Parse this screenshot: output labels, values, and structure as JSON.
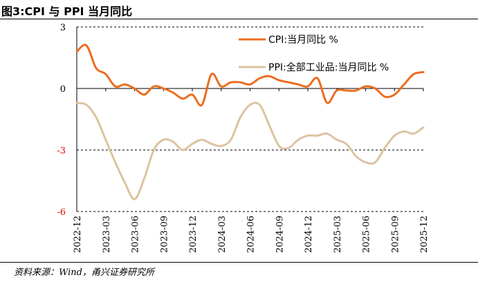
{
  "figure": {
    "title": "图3:CPI 与 PPI 当月同比",
    "source": "资料来源：Wind，甬兴证券研究所"
  },
  "chart_data": {
    "type": "line",
    "ylim": [
      -6,
      3
    ],
    "yticks": [
      {
        "value": 3,
        "label": "3"
      },
      {
        "value": 0,
        "label": "0"
      },
      {
        "value": -3,
        "label": "-3"
      },
      {
        "value": -6,
        "label": "-6"
      }
    ],
    "xlim": [
      "2022-12",
      "2025-12"
    ],
    "xticks": [
      "2022-12",
      "2023-03",
      "2023-06",
      "2023-09",
      "2023-12",
      "2024-03",
      "2024-06",
      "2024-09",
      "2024-12",
      "2025-03",
      "2025-06",
      "2025-09",
      "2025-12"
    ],
    "grid": "dashed horizontal at -3 and 3",
    "legend_position": "top-right",
    "colors": {
      "negative_tick": "#e00000",
      "positive_tick": "#000000"
    },
    "series": [
      {
        "name": "CPI:当月同比 %",
        "color": "#ec6d1f",
        "points": [
          [
            "2022-12",
            1.8
          ],
          [
            "2023-01",
            2.1
          ],
          [
            "2023-02",
            1.0
          ],
          [
            "2023-03",
            0.7
          ],
          [
            "2023-04",
            0.1
          ],
          [
            "2023-05",
            0.2
          ],
          [
            "2023-06",
            0.0
          ],
          [
            "2023-07",
            -0.3
          ],
          [
            "2023-08",
            0.1
          ],
          [
            "2023-09",
            0.0
          ],
          [
            "2023-10",
            -0.2
          ],
          [
            "2023-11",
            -0.5
          ],
          [
            "2023-12",
            -0.3
          ],
          [
            "2024-01",
            -0.8
          ],
          [
            "2024-02",
            0.7
          ],
          [
            "2024-03",
            0.1
          ],
          [
            "2024-04",
            0.3
          ],
          [
            "2024-05",
            0.3
          ],
          [
            "2024-06",
            0.2
          ],
          [
            "2024-07",
            0.5
          ],
          [
            "2024-08",
            0.6
          ],
          [
            "2024-09",
            0.4
          ],
          [
            "2024-10",
            0.3
          ],
          [
            "2024-11",
            0.2
          ],
          [
            "2024-12",
            0.1
          ],
          [
            "2025-01",
            0.5
          ],
          [
            "2025-02",
            -0.7
          ],
          [
            "2025-03",
            -0.1
          ],
          [
            "2025-04",
            -0.1
          ],
          [
            "2025-05",
            -0.1
          ],
          [
            "2025-06",
            0.1
          ],
          [
            "2025-07",
            0.0
          ],
          [
            "2025-08",
            -0.4
          ],
          [
            "2025-09",
            -0.3
          ],
          [
            "2025-10",
            0.2
          ],
          [
            "2025-11",
            0.7
          ],
          [
            "2025-12",
            0.8
          ]
        ]
      },
      {
        "name": "PPI:全部工业品:当月同比 %",
        "color": "#dcc3a0",
        "points": [
          [
            "2022-12",
            -0.7
          ],
          [
            "2023-01",
            -0.8
          ],
          [
            "2023-02",
            -1.4
          ],
          [
            "2023-03",
            -2.5
          ],
          [
            "2023-04",
            -3.6
          ],
          [
            "2023-05",
            -4.6
          ],
          [
            "2023-06",
            -5.4
          ],
          [
            "2023-07",
            -4.4
          ],
          [
            "2023-08",
            -3.0
          ],
          [
            "2023-09",
            -2.5
          ],
          [
            "2023-10",
            -2.6
          ],
          [
            "2023-11",
            -3.0
          ],
          [
            "2023-12",
            -2.7
          ],
          [
            "2024-01",
            -2.5
          ],
          [
            "2024-02",
            -2.7
          ],
          [
            "2024-03",
            -2.8
          ],
          [
            "2024-04",
            -2.5
          ],
          [
            "2024-05",
            -1.4
          ],
          [
            "2024-06",
            -0.8
          ],
          [
            "2024-07",
            -0.8
          ],
          [
            "2024-08",
            -1.8
          ],
          [
            "2024-09",
            -2.8
          ],
          [
            "2024-10",
            -2.9
          ],
          [
            "2024-11",
            -2.5
          ],
          [
            "2024-12",
            -2.3
          ],
          [
            "2025-01",
            -2.3
          ],
          [
            "2025-02",
            -2.2
          ],
          [
            "2025-03",
            -2.5
          ],
          [
            "2025-04",
            -2.7
          ],
          [
            "2025-05",
            -3.3
          ],
          [
            "2025-06",
            -3.6
          ],
          [
            "2025-07",
            -3.6
          ],
          [
            "2025-08",
            -2.9
          ],
          [
            "2025-09",
            -2.3
          ],
          [
            "2025-10",
            -2.1
          ],
          [
            "2025-11",
            -2.2
          ],
          [
            "2025-12",
            -1.9
          ]
        ]
      }
    ]
  }
}
